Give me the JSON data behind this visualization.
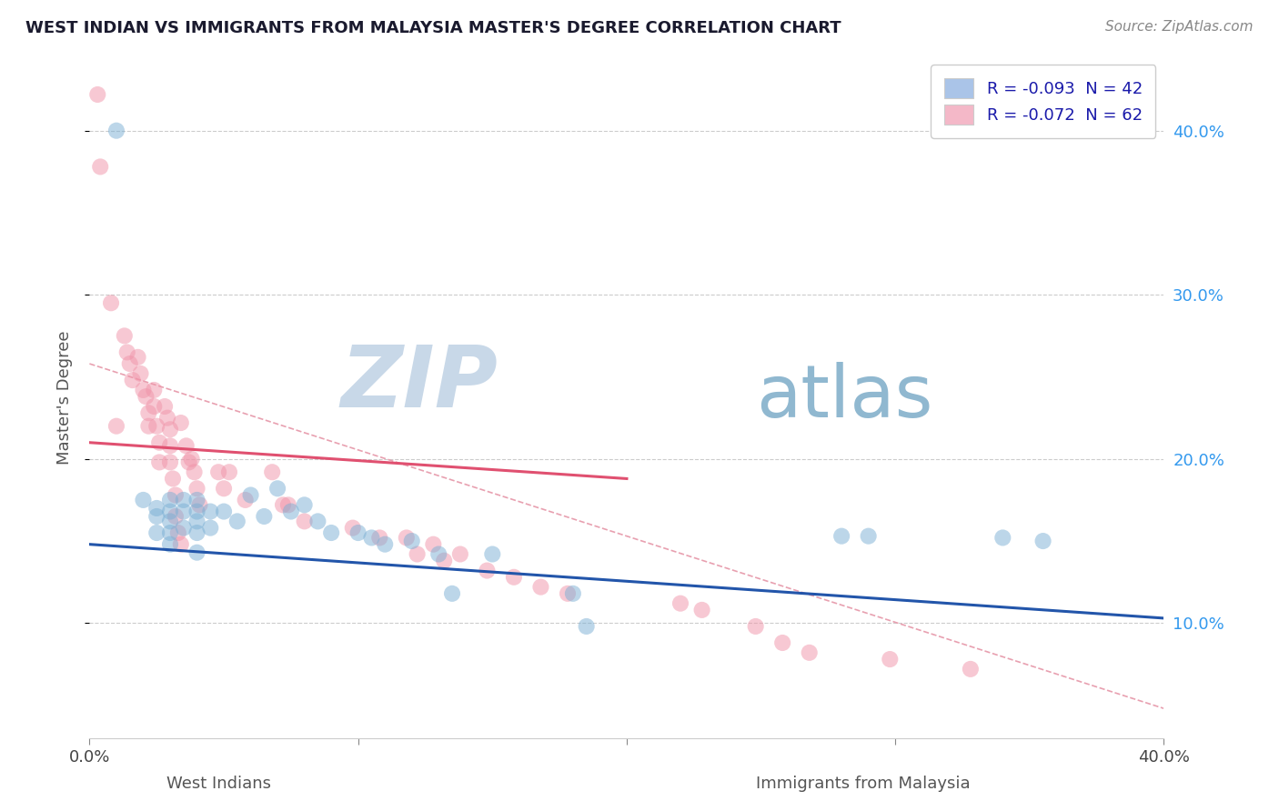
{
  "title": "WEST INDIAN VS IMMIGRANTS FROM MALAYSIA MASTER'S DEGREE CORRELATION CHART",
  "source_text": "Source: ZipAtlas.com",
  "ylabel": "Master's Degree",
  "ytick_labels": [
    "10.0%",
    "20.0%",
    "30.0%",
    "40.0%"
  ],
  "ytick_values": [
    0.1,
    0.2,
    0.3,
    0.4
  ],
  "xlim": [
    0.0,
    0.4
  ],
  "ylim": [
    0.03,
    0.445
  ],
  "legend_blue_label": "R = -0.093  N = 42",
  "legend_pink_label": "R = -0.072  N = 62",
  "legend_blue_color": "#aac4e8",
  "legend_pink_color": "#f4b8c8",
  "scatter_blue_color": "#7aafd4",
  "scatter_pink_color": "#f093a8",
  "trend_blue_color": "#2255aa",
  "trend_pink_color": "#e05070",
  "trend_dashed_color": "#e8a0b0",
  "watermark_zip_color": "#c8d8e8",
  "watermark_atlas_color": "#90b8d0",
  "background_color": "#ffffff",
  "blue_scatter_x": [
    0.01,
    0.02,
    0.025,
    0.025,
    0.025,
    0.03,
    0.03,
    0.03,
    0.03,
    0.03,
    0.035,
    0.035,
    0.035,
    0.04,
    0.04,
    0.04,
    0.04,
    0.04,
    0.045,
    0.045,
    0.05,
    0.055,
    0.06,
    0.065,
    0.07,
    0.075,
    0.08,
    0.085,
    0.09,
    0.1,
    0.105,
    0.11,
    0.12,
    0.13,
    0.135,
    0.15,
    0.18,
    0.185,
    0.28,
    0.29,
    0.34,
    0.355
  ],
  "blue_scatter_y": [
    0.4,
    0.175,
    0.17,
    0.165,
    0.155,
    0.175,
    0.168,
    0.162,
    0.155,
    0.148,
    0.175,
    0.168,
    0.158,
    0.175,
    0.168,
    0.162,
    0.155,
    0.143,
    0.168,
    0.158,
    0.168,
    0.162,
    0.178,
    0.165,
    0.182,
    0.168,
    0.172,
    0.162,
    0.155,
    0.155,
    0.152,
    0.148,
    0.15,
    0.142,
    0.118,
    0.142,
    0.118,
    0.098,
    0.153,
    0.153,
    0.152,
    0.15
  ],
  "pink_scatter_x": [
    0.003,
    0.004,
    0.008,
    0.01,
    0.013,
    0.014,
    0.015,
    0.016,
    0.018,
    0.019,
    0.02,
    0.021,
    0.022,
    0.022,
    0.024,
    0.024,
    0.025,
    0.026,
    0.026,
    0.028,
    0.029,
    0.03,
    0.03,
    0.03,
    0.031,
    0.032,
    0.032,
    0.033,
    0.034,
    0.034,
    0.036,
    0.037,
    0.038,
    0.039,
    0.04,
    0.041,
    0.048,
    0.05,
    0.052,
    0.058,
    0.068,
    0.072,
    0.074,
    0.08,
    0.098,
    0.108,
    0.118,
    0.122,
    0.128,
    0.132,
    0.138,
    0.148,
    0.158,
    0.168,
    0.178,
    0.22,
    0.228,
    0.248,
    0.258,
    0.268,
    0.298,
    0.328
  ],
  "pink_scatter_y": [
    0.422,
    0.378,
    0.295,
    0.22,
    0.275,
    0.265,
    0.258,
    0.248,
    0.262,
    0.252,
    0.242,
    0.238,
    0.228,
    0.22,
    0.242,
    0.232,
    0.22,
    0.21,
    0.198,
    0.232,
    0.225,
    0.218,
    0.208,
    0.198,
    0.188,
    0.178,
    0.165,
    0.155,
    0.148,
    0.222,
    0.208,
    0.198,
    0.2,
    0.192,
    0.182,
    0.172,
    0.192,
    0.182,
    0.192,
    0.175,
    0.192,
    0.172,
    0.172,
    0.162,
    0.158,
    0.152,
    0.152,
    0.142,
    0.148,
    0.138,
    0.142,
    0.132,
    0.128,
    0.122,
    0.118,
    0.112,
    0.108,
    0.098,
    0.088,
    0.082,
    0.078,
    0.072
  ],
  "blue_trend_x": [
    0.0,
    0.4
  ],
  "blue_trend_y": [
    0.148,
    0.103
  ],
  "pink_trend_x": [
    0.0,
    0.2
  ],
  "pink_trend_y": [
    0.21,
    0.188
  ],
  "dashed_trend_x": [
    0.0,
    0.4
  ],
  "dashed_trend_y": [
    0.258,
    0.048
  ],
  "bottom_label_left": "West Indians",
  "bottom_label_right": "Immigrants from Malaysia",
  "xtick_positions": [
    0.0,
    0.1,
    0.2,
    0.3,
    0.4
  ]
}
